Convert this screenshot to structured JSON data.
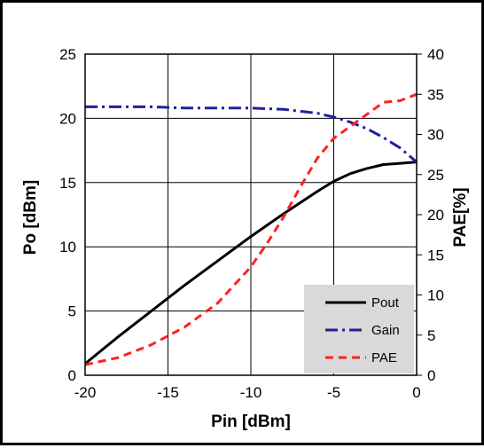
{
  "chart_data": {
    "type": "line",
    "xlabel": "Pin [dBm]",
    "ylabel": "Po [dBm]",
    "y2label": "PAE[%]",
    "xlim": [
      -20,
      0
    ],
    "ylim": [
      0,
      25
    ],
    "y2lim": [
      0,
      40
    ],
    "xticks": [
      "-20",
      "-15",
      "-10",
      "-5",
      "0"
    ],
    "yticks": [
      "0",
      "5",
      "10",
      "15",
      "20",
      "25"
    ],
    "y2ticks": [
      "0",
      "5",
      "10",
      "15",
      "20",
      "25",
      "30",
      "35",
      "40"
    ],
    "grid": true,
    "legend_position": "bottom-right",
    "series": [
      {
        "name": "Pout",
        "axis": "left",
        "color": "#000000",
        "dash": "solid",
        "x": [
          -20,
          -18,
          -16,
          -14,
          -12,
          -10,
          -8,
          -6,
          -5,
          -4,
          -3,
          -2,
          -1,
          0
        ],
        "y": [
          0.9,
          3.0,
          5.0,
          7.0,
          8.9,
          10.8,
          12.6,
          14.3,
          15.1,
          15.7,
          16.1,
          16.4,
          16.5,
          16.6
        ]
      },
      {
        "name": "Gain",
        "axis": "left",
        "color": "#1f1fa0",
        "dash": "dashdot",
        "x": [
          -20,
          -18,
          -16,
          -14,
          -12,
          -10,
          -8,
          -6,
          -5,
          -4,
          -3,
          -2,
          -1,
          0
        ],
        "y": [
          20.9,
          20.9,
          20.9,
          20.8,
          20.8,
          20.8,
          20.7,
          20.4,
          20.1,
          19.7,
          19.2,
          18.5,
          17.7,
          16.6
        ]
      },
      {
        "name": "PAE",
        "axis": "right",
        "color": "#ff2020",
        "dash": "dashed",
        "x": [
          -20,
          -18,
          -16,
          -14,
          -12,
          -10,
          -9,
          -8,
          -7,
          -6,
          -5,
          -4,
          -3,
          -2,
          -1,
          0
        ],
        "y": [
          1.3,
          2.2,
          3.8,
          6.0,
          9.0,
          13.5,
          16.5,
          19.8,
          23.5,
          27.0,
          29.5,
          31.0,
          32.5,
          34.0,
          34.2,
          35.0
        ]
      }
    ]
  },
  "colors": {
    "legend_bg": "#d9d9d9",
    "frame": "#000000",
    "grid": "#000000"
  }
}
